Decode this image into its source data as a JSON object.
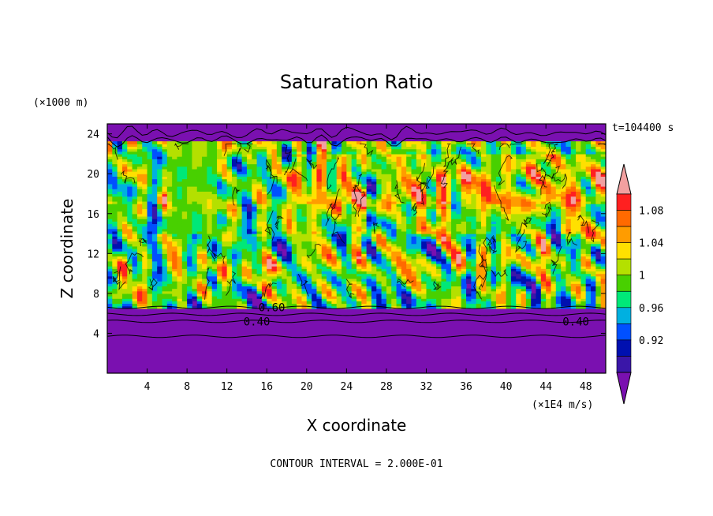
{
  "chart_data": {
    "type": "heatmap",
    "title": "Saturation Ratio",
    "xlabel": "X coordinate",
    "ylabel": "Z coordinate",
    "x_unit": "(×1E4 m/s)",
    "y_unit": "(×1000 m)",
    "time_label": "t=104400 s",
    "footer": "CONTOUR INTERVAL = 2.000E-01",
    "xlim": [
      0,
      50
    ],
    "ylim": [
      0,
      25
    ],
    "x_ticks": [
      "4",
      "8",
      "12",
      "16",
      "20",
      "24",
      "28",
      "32",
      "36",
      "40",
      "44",
      "48"
    ],
    "y_ticks": [
      "4",
      "8",
      "12",
      "16",
      "20",
      "24"
    ],
    "colorbar": {
      "labels": [
        "1.08",
        "1.04",
        "1",
        "0.96",
        "0.92"
      ],
      "colors": [
        "#f2a0a0",
        "#ff2020",
        "#ff6a00",
        "#ff9c00",
        "#ffe000",
        "#b4e000",
        "#48d000",
        "#00e878",
        "#00b0e0",
        "#0050ff",
        "#0010b0",
        "#3a16a8",
        "#7a10b0"
      ]
    },
    "contour_labels": [
      {
        "text": "0.60",
        "x": 16.5,
        "z": 6.6
      },
      {
        "text": "0.40",
        "x": 15.0,
        "z": 5.2
      },
      {
        "text": "0.40",
        "x": 47.0,
        "z": 5.2
      }
    ]
  }
}
